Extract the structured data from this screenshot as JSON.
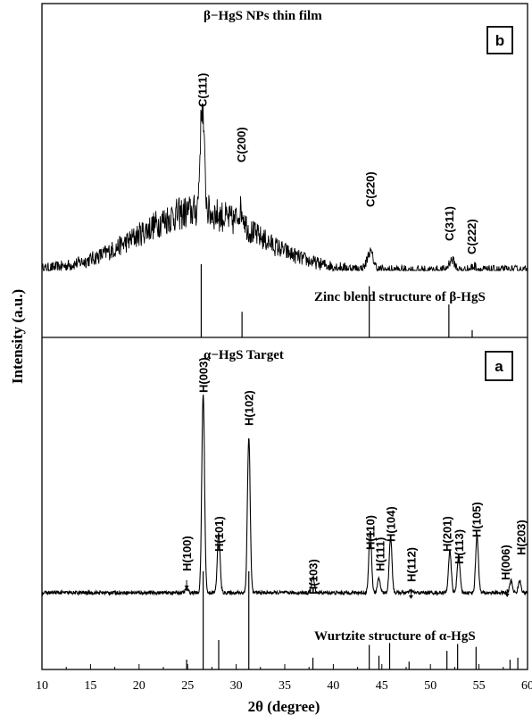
{
  "chart_data": {
    "type": "line",
    "xlabel": "2θ (degree)",
    "ylabel": "Intensity (a.u.)",
    "xlim": [
      10,
      60
    ],
    "x_ticks": [
      10,
      15,
      20,
      25,
      30,
      35,
      40,
      45,
      50,
      55,
      60
    ],
    "panels": [
      {
        "id": "b",
        "badge": "b",
        "title": "β−HgS NPs thin film",
        "reference_label": "Zinc blend structure of β-HgS",
        "series_peaks": [
          {
            "x": 26.5,
            "y": 1.0
          },
          {
            "x": 30.5,
            "y": 0.2
          },
          {
            "x": 43.8,
            "y": 0.22
          },
          {
            "x": 52.2,
            "y": 0.13
          },
          {
            "x": 54.5,
            "y": 0.05
          }
        ],
        "peak_labels": [
          {
            "text": "C(111)",
            "x": 26.5
          },
          {
            "text": "C(200)",
            "x": 30.5
          },
          {
            "text": "C(220)",
            "x": 43.8
          },
          {
            "text": "C(311)",
            "x": 51.9
          },
          {
            "text": "C(222)",
            "x": 54.2
          }
        ],
        "reference_lines": [
          {
            "x": 26.4,
            "h": 1.0
          },
          {
            "x": 30.6,
            "h": 0.35
          },
          {
            "x": 43.7,
            "h": 0.7
          },
          {
            "x": 51.9,
            "h": 0.45
          },
          {
            "x": 54.3,
            "h": 0.1
          }
        ]
      },
      {
        "id": "a",
        "badge": "a",
        "title": "α−HgS Target",
        "reference_label": "Wurtzite structure of α-HgS",
        "series_peaks": [
          {
            "x": 24.9,
            "y": 0.02
          },
          {
            "x": 26.6,
            "y": 1.0
          },
          {
            "x": 28.2,
            "y": 0.3
          },
          {
            "x": 31.3,
            "y": 0.78
          },
          {
            "x": 37.9,
            "y": 0.08
          },
          {
            "x": 43.8,
            "y": 0.31
          },
          {
            "x": 44.7,
            "y": 0.07
          },
          {
            "x": 45.9,
            "y": 0.28
          },
          {
            "x": 48.0,
            "y": 0.01
          },
          {
            "x": 52.0,
            "y": 0.21
          },
          {
            "x": 52.9,
            "y": 0.19
          },
          {
            "x": 54.8,
            "y": 0.29
          },
          {
            "x": 58.3,
            "y": 0.06
          },
          {
            "x": 59.2,
            "y": 0.06
          }
        ],
        "peak_labels": [
          {
            "text": "H(100)",
            "x": 24.9
          },
          {
            "text": "H(003)",
            "x": 26.6
          },
          {
            "text": "H(101)",
            "x": 28.2
          },
          {
            "text": "H(102)",
            "x": 31.3
          },
          {
            "text": "H(103)",
            "x": 37.9
          },
          {
            "text": "H(110)",
            "x": 43.8
          },
          {
            "text": "H(111)",
            "x": 44.8
          },
          {
            "text": "H(104)",
            "x": 45.9
          },
          {
            "text": "H(112)",
            "x": 48.0
          },
          {
            "text": "H(201)",
            "x": 51.7
          },
          {
            "text": "H(113)",
            "x": 52.9
          },
          {
            "text": "H(105)",
            "x": 54.7
          },
          {
            "text": "H(006)",
            "x": 57.7
          },
          {
            "text": "H(203)",
            "x": 59.3
          }
        ],
        "reference_lines": [
          {
            "x": 24.9,
            "h": 0.1
          },
          {
            "x": 26.6,
            "h": 1.0
          },
          {
            "x": 28.2,
            "h": 0.3
          },
          {
            "x": 31.3,
            "h": 1.0
          },
          {
            "x": 37.9,
            "h": 0.12
          },
          {
            "x": 43.7,
            "h": 0.25
          },
          {
            "x": 44.7,
            "h": 0.14
          },
          {
            "x": 45.8,
            "h": 0.27
          },
          {
            "x": 47.8,
            "h": 0.08
          },
          {
            "x": 51.7,
            "h": 0.19
          },
          {
            "x": 52.8,
            "h": 0.26
          },
          {
            "x": 54.7,
            "h": 0.23
          },
          {
            "x": 58.2,
            "h": 0.1
          },
          {
            "x": 59.0,
            "h": 0.12
          }
        ]
      }
    ]
  }
}
